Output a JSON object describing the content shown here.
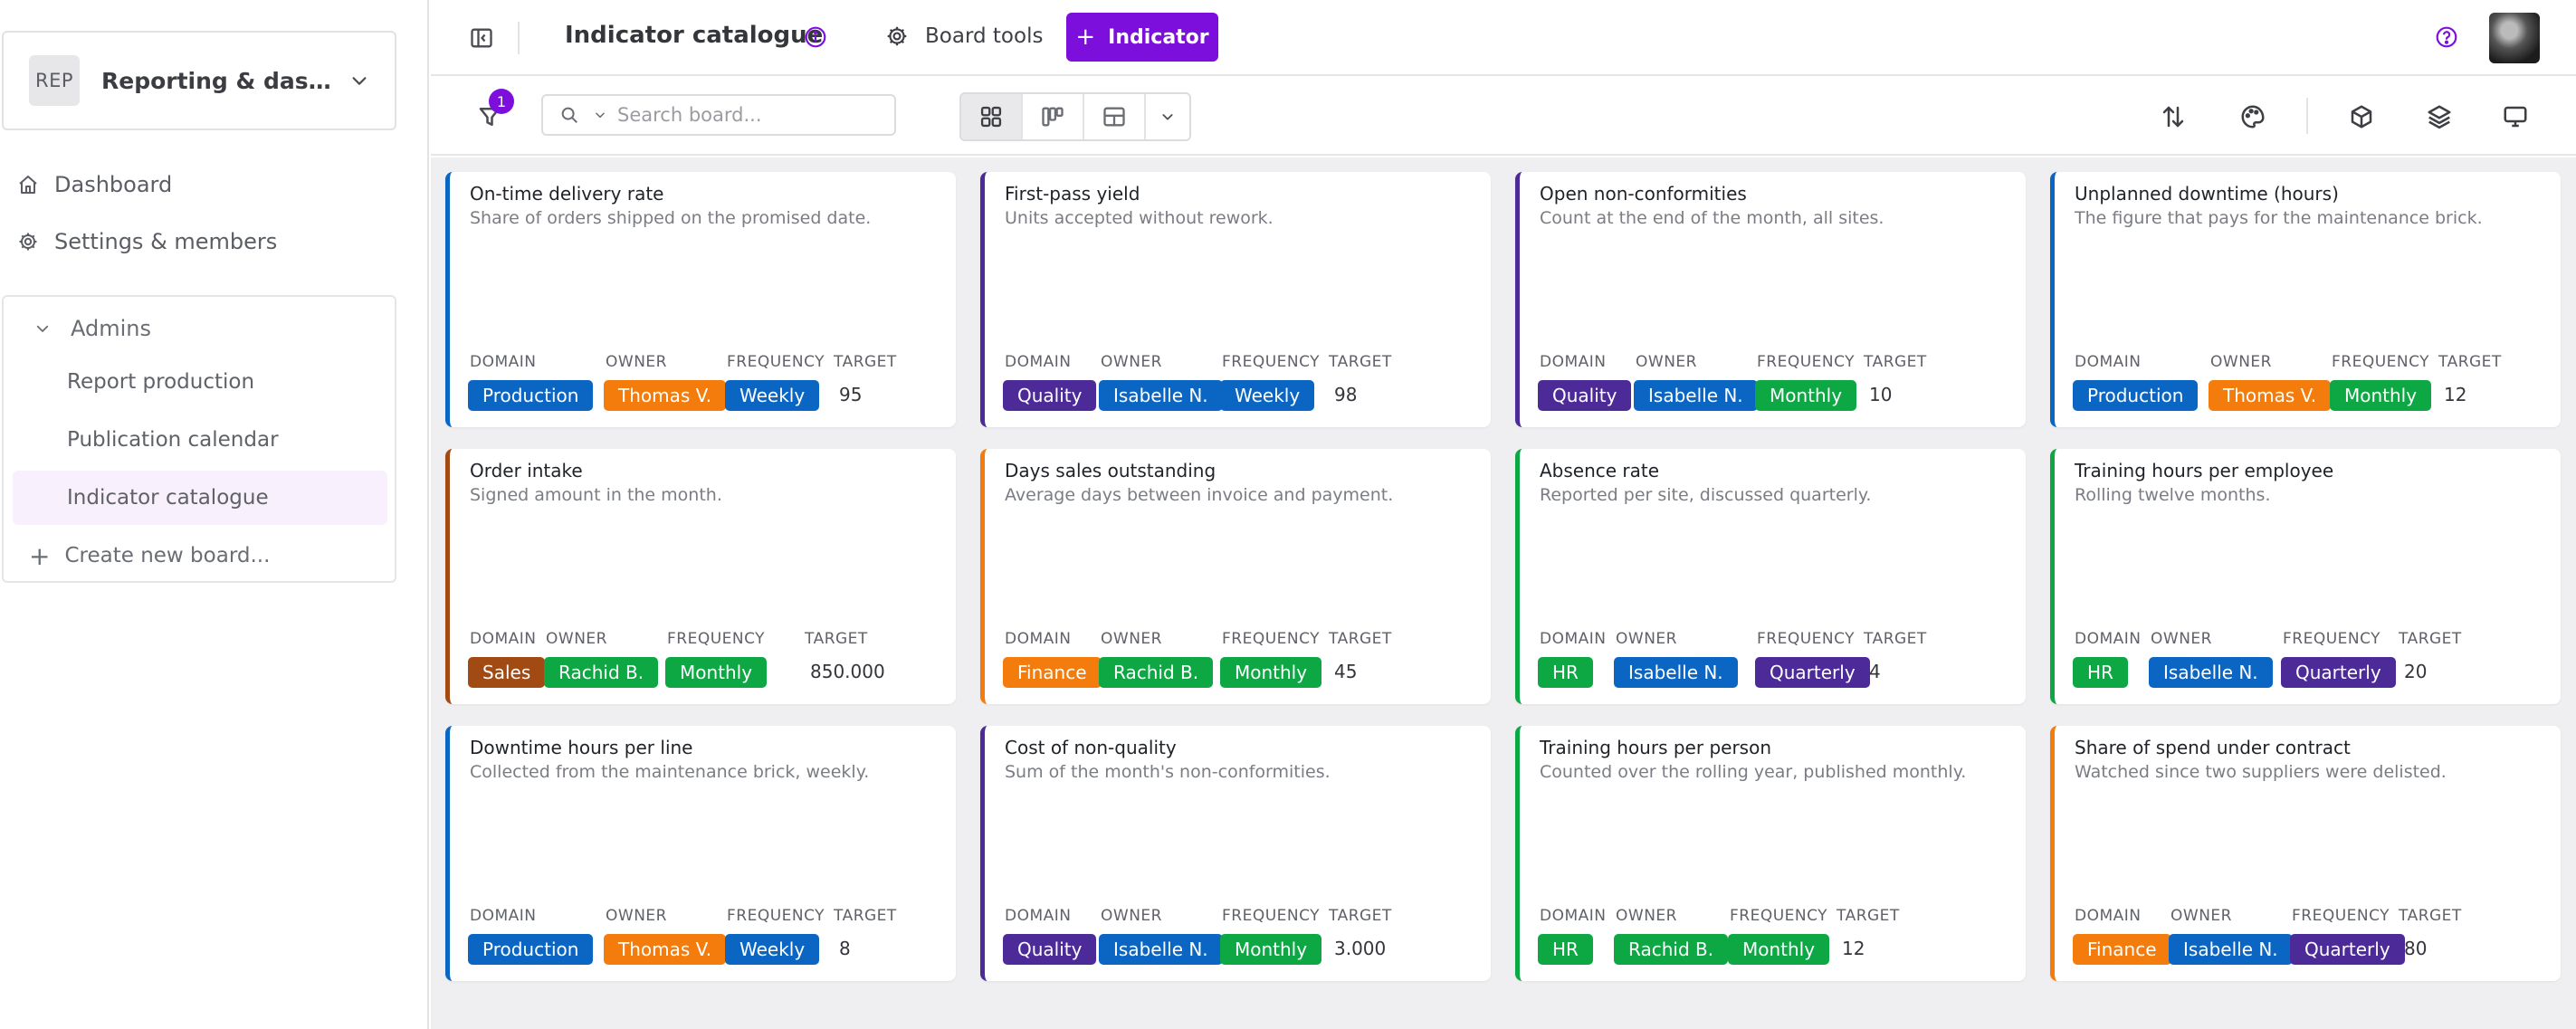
{
  "workspace": {
    "badge": "REP",
    "name": "Reporting & dashboards"
  },
  "nav": {
    "dashboard": "Dashboard",
    "settings": "Settings & members"
  },
  "admins": {
    "title": "Admins",
    "boards": [
      "Report production",
      "Publication calendar",
      "Indicator catalogue"
    ],
    "create": "Create new board..."
  },
  "topbar": {
    "title": "Indicator catalogue",
    "board_tools": "Board tools",
    "add_label": "Indicator"
  },
  "toolbar": {
    "filter_count": "1",
    "search_placeholder": "Search board..."
  },
  "fields": {
    "domain": "DOMAIN",
    "owner": "OWNER",
    "frequency": "FREQUENCY",
    "target": "TARGET"
  },
  "colors": {
    "accent": "#7c0fdc",
    "Production": "#0b66c3",
    "Quality": "#4c2a98",
    "Sales": "#a14a14",
    "Finance": "#f47c0c",
    "HR": "#0da744",
    "Thomas V.": "#f47c0c",
    "Isabelle N.": "#0b66c3",
    "Rachid B.": "#0da744",
    "Weekly": "#0b66c3",
    "Monthly": "#0da744",
    "Quarterly": "#4c2a98"
  },
  "cards": [
    {
      "title": "On-time delivery rate",
      "desc": "Share of orders shipped on the promised date.",
      "domain": "Production",
      "owner": "Thomas V.",
      "frequency": "Weekly",
      "target": "95"
    },
    {
      "title": "First-pass yield",
      "desc": "Units accepted without rework.",
      "domain": "Quality",
      "owner": "Isabelle N.",
      "frequency": "Weekly",
      "target": "98"
    },
    {
      "title": "Open non-conformities",
      "desc": "Count at the end of the month, all sites.",
      "domain": "Quality",
      "owner": "Isabelle N.",
      "frequency": "Monthly",
      "target": "10"
    },
    {
      "title": "Unplanned downtime (hours)",
      "desc": "The figure that pays for the maintenance brick.",
      "domain": "Production",
      "owner": "Thomas V.",
      "frequency": "Monthly",
      "target": "12"
    },
    {
      "title": "Order intake",
      "desc": "Signed amount in the month.",
      "domain": "Sales",
      "owner": "Rachid B.",
      "frequency": "Monthly",
      "target": "850.000"
    },
    {
      "title": "Days sales outstanding",
      "desc": "Average days between invoice and payment.",
      "domain": "Finance",
      "owner": "Rachid B.",
      "frequency": "Monthly",
      "target": "45"
    },
    {
      "title": "Absence rate",
      "desc": "Reported per site, discussed quarterly.",
      "domain": "HR",
      "owner": "Isabelle N.",
      "frequency": "Quarterly",
      "target": "4"
    },
    {
      "title": "Training hours per employee",
      "desc": "Rolling twelve months.",
      "domain": "HR",
      "owner": "Isabelle N.",
      "frequency": "Quarterly",
      "target": "20"
    },
    {
      "title": "Downtime hours per line",
      "desc": "Collected from the maintenance brick, weekly.",
      "domain": "Production",
      "owner": "Thomas V.",
      "frequency": "Weekly",
      "target": "8"
    },
    {
      "title": "Cost of non-quality",
      "desc": "Sum of the month's non-conformities.",
      "domain": "Quality",
      "owner": "Isabelle N.",
      "frequency": "Monthly",
      "target": "3.000"
    },
    {
      "title": "Training hours per person",
      "desc": "Counted over the rolling year, published monthly.",
      "domain": "HR",
      "owner": "Rachid B.",
      "frequency": "Monthly",
      "target": "12"
    },
    {
      "title": "Share of spend under contract",
      "desc": "Watched since two suppliers were delisted.",
      "domain": "Finance",
      "owner": "Isabelle N.",
      "frequency": "Quarterly",
      "target": "80"
    }
  ]
}
